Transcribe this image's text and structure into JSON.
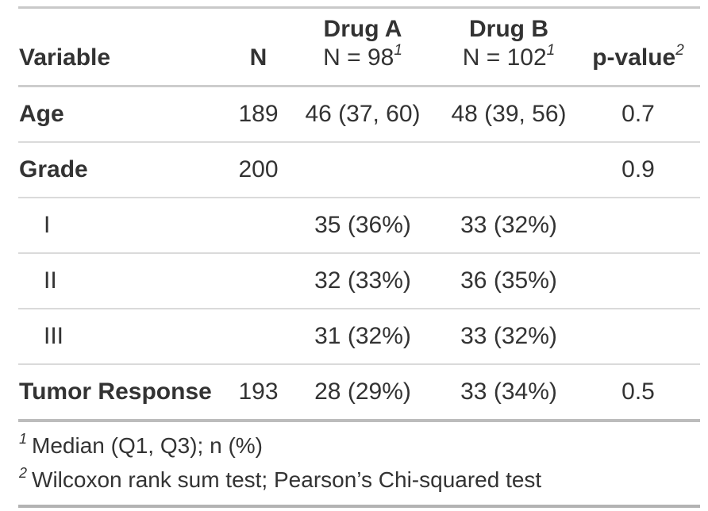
{
  "colors": {
    "text": "#333333",
    "rule_light": "#dadada",
    "rule_medium": "#cdcdcd",
    "rule_heavy": "#b3b3b3"
  },
  "table": {
    "header": {
      "variable": "Variable",
      "n": "N",
      "drug_a_line1": "Drug A",
      "drug_a_line2": "N = 98",
      "drug_a_sup": "1",
      "drug_b_line1": "Drug B",
      "drug_b_line2": "N = 102",
      "drug_b_sup": "1",
      "p_value": "p-value",
      "p_value_sup": "2"
    },
    "rows": [
      {
        "label": "Age",
        "n": "189",
        "drug_a": "46 (37, 60)",
        "drug_b": "48 (39, 56)",
        "p_value": "0.7"
      },
      {
        "label": "Grade",
        "n": "200",
        "drug_a": "",
        "drug_b": "",
        "p_value": "0.9"
      },
      {
        "label": "I",
        "n": "",
        "drug_a": "35 (36%)",
        "drug_b": "33 (32%)",
        "p_value": ""
      },
      {
        "label": "II",
        "n": "",
        "drug_a": "32 (33%)",
        "drug_b": "36 (35%)",
        "p_value": ""
      },
      {
        "label": "III",
        "n": "",
        "drug_a": "31 (32%)",
        "drug_b": "33 (32%)",
        "p_value": ""
      },
      {
        "label": "Tumor Response",
        "n": "193",
        "drug_a": "28 (29%)",
        "drug_b": "33 (34%)",
        "p_value": "0.5"
      }
    ],
    "footnotes": [
      {
        "mark": "1",
        "text": "Median (Q1, Q3); n (%)"
      },
      {
        "mark": "2",
        "text": "Wilcoxon rank sum test; Pearson’s Chi-squared test"
      }
    ]
  }
}
